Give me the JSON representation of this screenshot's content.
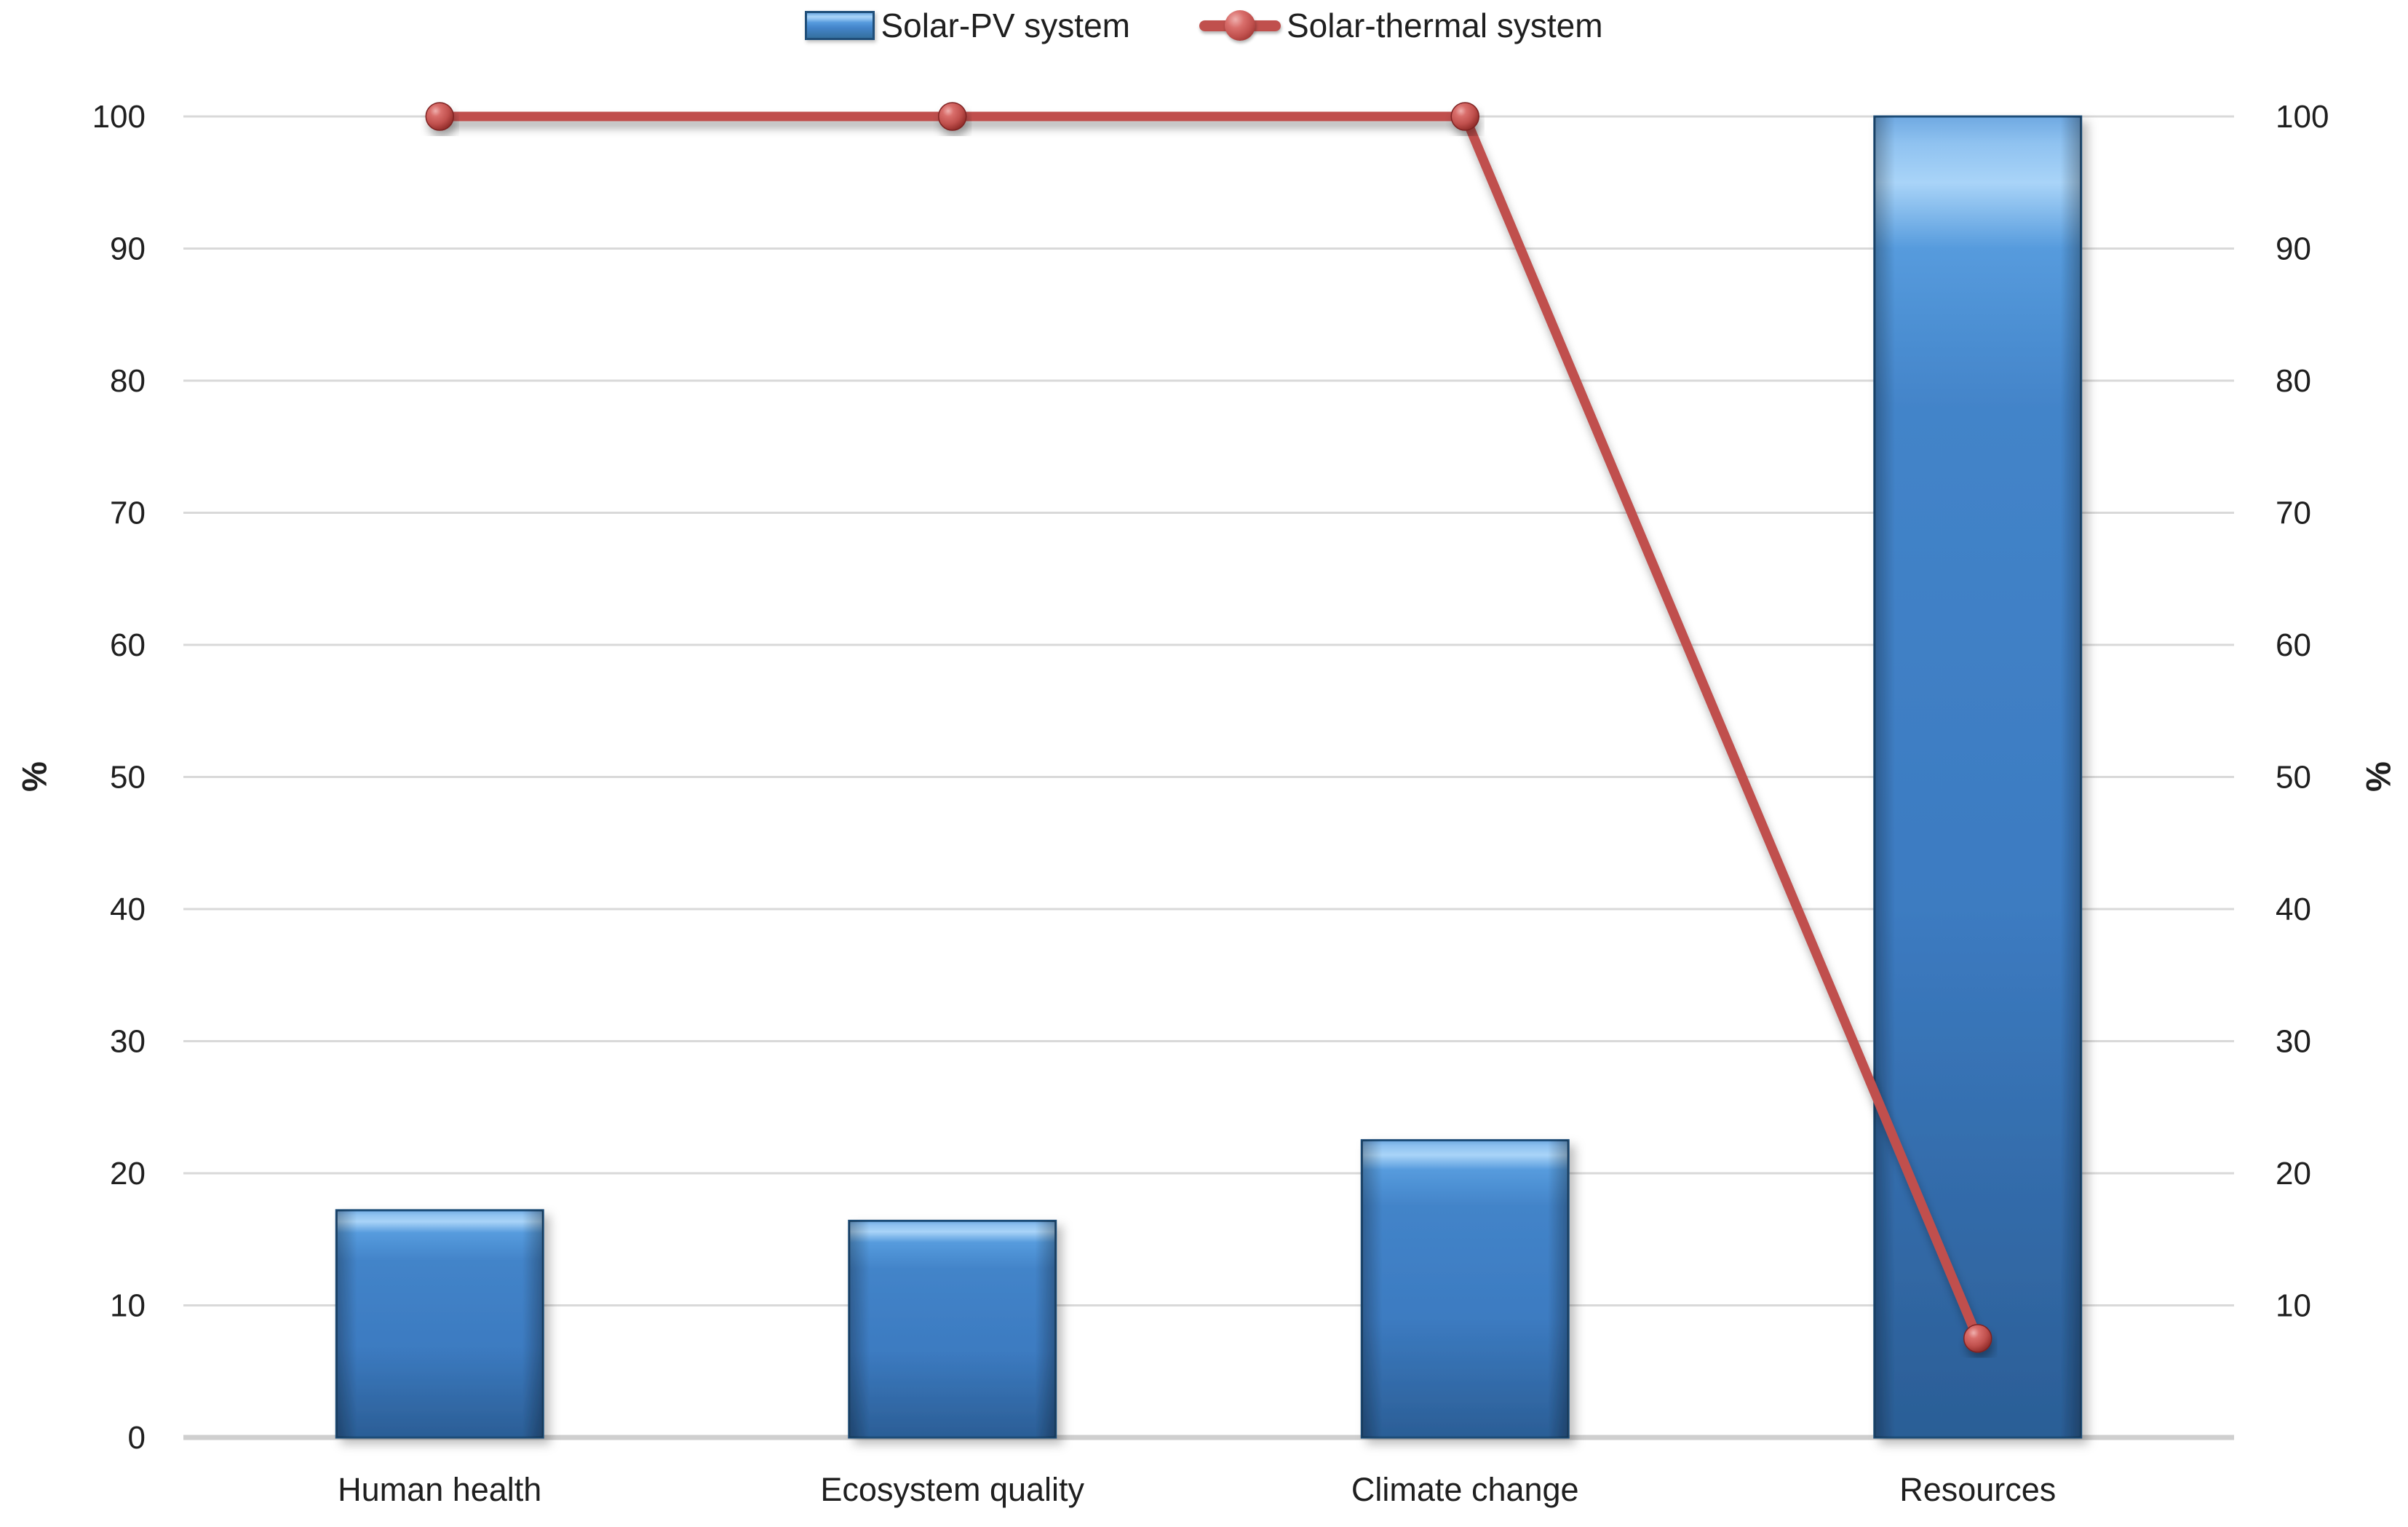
{
  "chart_data": {
    "type": "combo",
    "title": "",
    "categories": [
      "Human health",
      "Ecosystem quality",
      "Climate change",
      "Resources"
    ],
    "series": [
      {
        "name": "Solar-PV system",
        "type": "bar",
        "values": [
          17.2,
          16.4,
          22.5,
          100
        ],
        "color": "#3E7EC2",
        "border_color": "#1F4E79"
      },
      {
        "name": "Solar-thermal system",
        "type": "line",
        "values": [
          100,
          100,
          100,
          7.5
        ],
        "color": "#C0504D",
        "marker_color": "#B33B38"
      }
    ],
    "ylabel_left": "%",
    "ylabel_right": "%",
    "ylim": [
      0,
      100
    ],
    "yticks_left": [
      0,
      10,
      20,
      30,
      40,
      50,
      60,
      70,
      80,
      90,
      100
    ],
    "yticks_right": [
      10,
      20,
      30,
      40,
      50,
      60,
      70,
      80,
      90,
      100
    ],
    "grid": true,
    "legend_position": "top",
    "gridline_color": "#D9D9D9",
    "axisline_color": "#CFCFCF",
    "text_color": "#1F1F1F"
  }
}
